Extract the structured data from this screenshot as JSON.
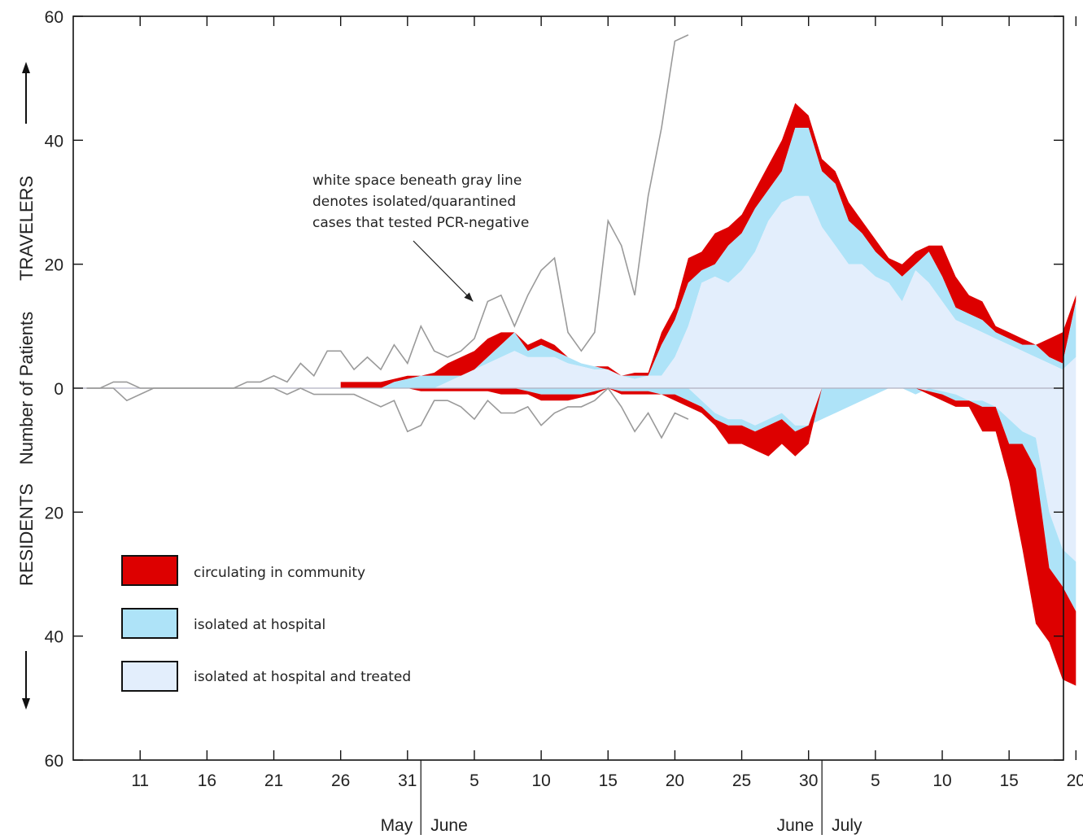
{
  "chart_data": {
    "type": "area",
    "ylabel_parts": {
      "top": "TRAVELERS",
      "middle": "Number of Patients",
      "bottom": "RESIDENTS"
    },
    "y_ticks": [
      60,
      40,
      20,
      0,
      20,
      40,
      60
    ],
    "ylim": [
      -60,
      60
    ],
    "x_range_days": [
      0,
      73
    ],
    "x_ticks": [
      {
        "day": 4,
        "label": "11"
      },
      {
        "day": 9,
        "label": "16"
      },
      {
        "day": 14,
        "label": "21"
      },
      {
        "day": 19,
        "label": "26"
      },
      {
        "day": 24,
        "label": "31"
      },
      {
        "day": 29,
        "label": "5"
      },
      {
        "day": 34,
        "label": "10"
      },
      {
        "day": 39,
        "label": "15"
      },
      {
        "day": 44,
        "label": "20"
      },
      {
        "day": 49,
        "label": "25"
      },
      {
        "day": 54,
        "label": "30"
      },
      {
        "day": 59,
        "label": "5"
      },
      {
        "day": 64,
        "label": "10"
      },
      {
        "day": 69,
        "label": "15"
      },
      {
        "day": 74,
        "label": "20"
      }
    ],
    "month_labels": [
      {
        "text": "May",
        "side": "left",
        "boundary_day": 25
      },
      {
        "text": "June",
        "side": "right",
        "boundary_day": 25
      },
      {
        "text": "June",
        "side": "left",
        "boundary_day": 55
      },
      {
        "text": "July",
        "side": "right",
        "boundary_day": 55
      }
    ],
    "annotation": {
      "lines": [
        "white space beneath gray line",
        "denotes isolated/quarantined",
        "cases that tested PCR-negative"
      ],
      "arrow_to": {
        "day": 28.9,
        "value": 14
      }
    },
    "colors": {
      "community": "#dd0000",
      "hospital": "#aee3f8",
      "treated": "#e3eefc",
      "gray_line": "#9a9a9a",
      "zero_line": "#b0b0c0"
    },
    "legend": [
      {
        "label": "circulating in community",
        "color": "#dd0000"
      },
      {
        "label": "isolated at hospital",
        "color": "#aee3f8"
      },
      {
        "label": "isolated at hospital and treated",
        "color": "#e3eefc"
      }
    ],
    "travelers": {
      "days": [
        19,
        20,
        21,
        22,
        23,
        24,
        25,
        26,
        27,
        28,
        29,
        30,
        31,
        32,
        33,
        34,
        35,
        36,
        37,
        38,
        39,
        40,
        41,
        42,
        43,
        44,
        45,
        46,
        47,
        48,
        49,
        50,
        51,
        52,
        53,
        54,
        55,
        56,
        57,
        58,
        59,
        60,
        61,
        62,
        63,
        64,
        65,
        66,
        67,
        68,
        69,
        70,
        71,
        72,
        73,
        74
      ],
      "community_top": [
        1,
        1,
        1,
        1,
        1.5,
        2,
        2,
        2.5,
        4,
        5,
        6,
        8,
        9,
        9,
        7,
        8,
        7,
        5,
        4,
        3.5,
        3.5,
        2,
        2.5,
        2.5,
        9,
        13,
        21,
        22,
        25,
        26,
        28,
        32,
        36,
        40,
        46,
        44,
        37,
        35,
        30,
        27,
        24,
        21,
        20,
        22,
        23,
        23,
        18,
        15,
        14,
        10,
        9,
        8,
        7,
        8,
        9,
        15
      ],
      "hospital_top": [
        0,
        0,
        0,
        0,
        1,
        1.5,
        2,
        2,
        2,
        2,
        3,
        5,
        7,
        9,
        6,
        7,
        6,
        5,
        4,
        3.5,
        3,
        2,
        2,
        2,
        7,
        11,
        17,
        19,
        20,
        23,
        25,
        29,
        32,
        35,
        42,
        42,
        35,
        33,
        27,
        25,
        22,
        20,
        18,
        20,
        22,
        18,
        13,
        12,
        11,
        9,
        8,
        7,
        7,
        5,
        4,
        14
      ],
      "treated_top": [
        0,
        0,
        0,
        0,
        0,
        0,
        0,
        0,
        1,
        2,
        3,
        4,
        5,
        6,
        5,
        5,
        5,
        4,
        3.5,
        3,
        3,
        2,
        1.5,
        2,
        2,
        5,
        10,
        17,
        18,
        17,
        19,
        22,
        27,
        30,
        31,
        31,
        26,
        23,
        20,
        20,
        18,
        17,
        14,
        19,
        17,
        14,
        11,
        10,
        9,
        8,
        7,
        6,
        5,
        4,
        3,
        5
      ]
    },
    "travelers_pcr_negative_line": {
      "days": [
        0,
        1,
        2,
        3,
        4,
        5,
        6,
        7,
        8,
        9,
        10,
        11,
        12,
        13,
        14,
        15,
        16,
        17,
        18,
        19,
        20,
        21,
        22,
        23,
        24,
        25,
        26,
        27,
        28,
        29,
        30,
        31,
        32,
        33,
        34,
        35,
        36,
        37,
        38,
        39,
        40,
        41,
        42,
        43,
        44,
        45
      ],
      "values": [
        0,
        0,
        1,
        1,
        0,
        0,
        0,
        0,
        0,
        0,
        0,
        0,
        1,
        1,
        2,
        1,
        4,
        2,
        6,
        6,
        3,
        5,
        3,
        7,
        4,
        10,
        6,
        5,
        6,
        8,
        14,
        15,
        10,
        15,
        19,
        21,
        9,
        6,
        9,
        27,
        23,
        15,
        31,
        42,
        56,
        57
      ]
    },
    "residents": {
      "days": [
        19,
        20,
        21,
        22,
        23,
        24,
        25,
        26,
        27,
        28,
        29,
        30,
        31,
        32,
        33,
        34,
        35,
        36,
        37,
        38,
        39,
        40,
        41,
        42,
        43,
        44,
        45,
        46,
        47,
        48,
        49,
        50,
        51,
        52,
        53,
        54,
        55,
        56,
        57,
        58,
        59,
        60,
        61,
        62,
        63,
        64,
        65,
        66,
        67,
        68,
        69,
        70,
        71,
        72,
        73,
        74
      ],
      "community_bottom": [
        0,
        0,
        0,
        0,
        0,
        0,
        0.5,
        0.5,
        0.5,
        0.5,
        0.5,
        0.5,
        1,
        1,
        1,
        2,
        2,
        2,
        1.5,
        1,
        0,
        1,
        1,
        1,
        1,
        2,
        3,
        4,
        6,
        9,
        9,
        10,
        11,
        9,
        11,
        9,
        0,
        0,
        0,
        0,
        0,
        0,
        0,
        0,
        1,
        2,
        3,
        3,
        7,
        7,
        15,
        26,
        38,
        41,
        47,
        48
      ],
      "hospital_bottom": [
        0,
        0,
        0,
        0,
        0,
        0,
        0,
        0,
        0,
        0,
        0,
        0,
        0,
        0,
        0.5,
        1,
        1,
        1,
        1,
        0.5,
        0,
        0.5,
        0.5,
        0.5,
        1,
        1,
        2,
        3,
        5,
        6,
        6,
        7,
        6,
        5,
        7,
        6,
        0,
        0,
        0,
        0,
        0,
        0,
        0,
        0,
        0.5,
        1,
        2,
        2,
        3,
        3,
        9,
        9,
        13,
        29,
        32,
        36
      ],
      "treated_bottom": [
        0,
        0,
        0,
        0,
        0,
        0,
        0,
        0,
        0,
        0,
        0,
        0,
        0,
        0,
        0,
        0,
        0,
        0,
        0,
        0,
        0,
        0,
        0,
        0,
        0,
        0,
        0,
        2,
        4,
        5,
        5,
        6,
        5,
        4,
        6,
        6,
        5,
        4,
        3,
        2,
        1,
        0,
        0,
        1,
        0,
        0.5,
        1,
        2,
        2,
        3,
        5,
        7,
        8,
        20,
        26,
        28
      ]
    },
    "residents_pcr_negative_line": {
      "days": [
        0,
        1,
        2,
        3,
        4,
        5,
        6,
        7,
        8,
        9,
        10,
        11,
        12,
        13,
        14,
        15,
        16,
        17,
        18,
        19,
        20,
        21,
        22,
        23,
        24,
        25,
        26,
        27,
        28,
        29,
        30,
        31,
        32,
        33,
        34,
        35,
        36,
        37,
        38,
        39,
        40,
        41,
        42,
        43,
        44,
        45
      ],
      "values": [
        0,
        0,
        0,
        2,
        1,
        0,
        0,
        0,
        0,
        0,
        0,
        0,
        0,
        0,
        0,
        1,
        0,
        1,
        1,
        1,
        1,
        2,
        3,
        2,
        7,
        6,
        2,
        2,
        3,
        5,
        2,
        4,
        4,
        3,
        6,
        4,
        3,
        3,
        2,
        0,
        3,
        7,
        4,
        8,
        4,
        5
      ]
    }
  }
}
